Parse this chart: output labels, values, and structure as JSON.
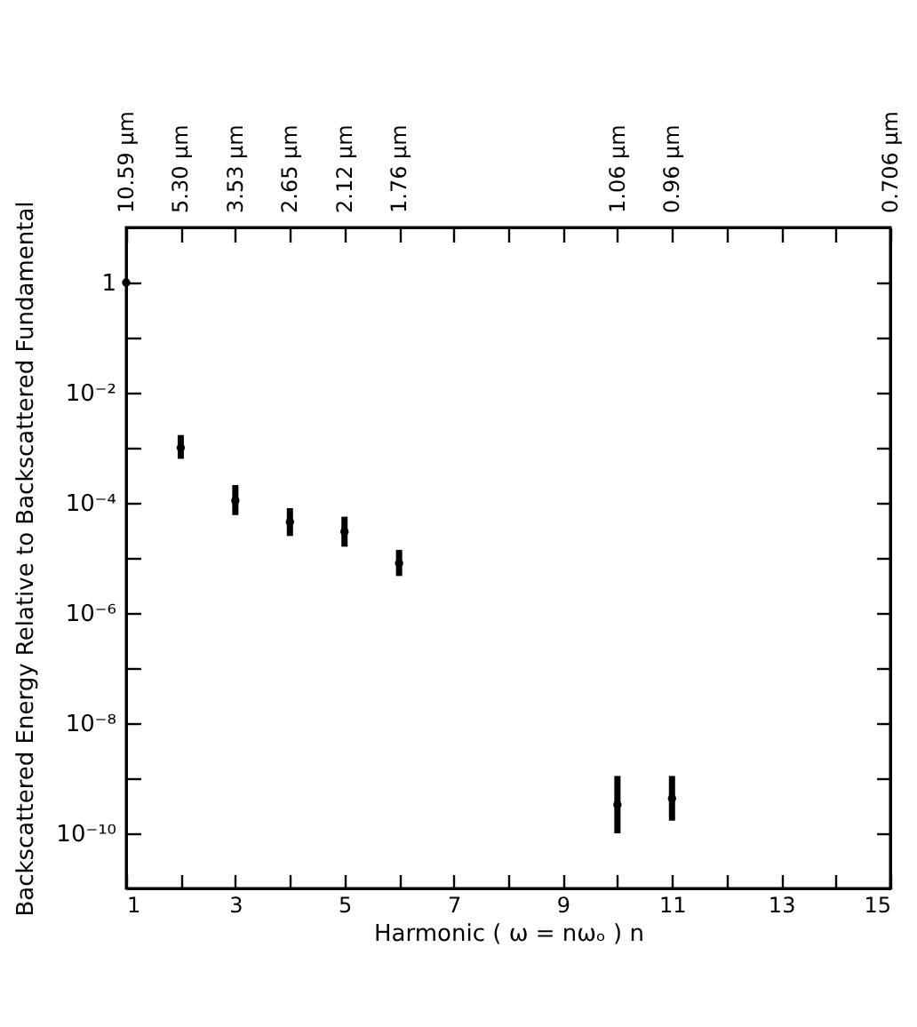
{
  "chart_data": {
    "type": "scatter",
    "xlabel": "Harmonic  ( ω = nωₒ ) n",
    "ylabel": "Backscattered  Energy  Relative  to  Backscattered  Fundamental",
    "x": [
      1,
      2,
      3,
      4,
      5,
      6,
      10,
      11
    ],
    "series": [
      {
        "color": "#000000",
        "values": [
          1,
          0.001,
          0.00011,
          4.5e-05,
          3e-05,
          8e-06,
          3.3e-10,
          4.3e-10
        ],
        "errors": [
          null,
          [
            0.00063,
            0.0017
          ],
          [
            6e-05,
            0.00021
          ],
          [
            2.5e-05,
            8e-05
          ],
          [
            1.6e-05,
            5.6e-05
          ],
          [
            4.7e-06,
            1.4e-05
          ],
          [
            1e-10,
            1.1e-09
          ],
          [
            1.7e-10,
            1.1e-09
          ]
        ]
      }
    ],
    "log": "y",
    "marker": "circle",
    "xlim": [
      1,
      15
    ],
    "xticks": [
      1,
      {
        "value": 2,
        "label": null
      },
      3,
      {
        "value": 4,
        "label": null
      },
      5,
      {
        "value": 6,
        "label": null
      },
      7,
      {
        "value": 8,
        "label": null
      },
      9,
      {
        "value": 10,
        "label": null
      },
      11,
      {
        "value": 12,
        "label": null
      },
      13,
      {
        "value": 14,
        "label": null
      },
      15
    ],
    "annotations": [
      {
        "text": "10.59 μm",
        "x": 1
      },
      {
        "text": "5.30 μm",
        "x": 2
      },
      {
        "text": "3.53 μm",
        "x": 3
      },
      {
        "text": "2.65 μm",
        "x": 4
      },
      {
        "text": "2.12 μm",
        "x": 5
      },
      {
        "text": "1.76 μm",
        "x": 6
      },
      {
        "text": "1.06 μm",
        "x": 10
      },
      {
        "text": "0.96 μm",
        "x": 11
      },
      "0.706 μm"
    ],
    "ylim": [
      1e-11,
      10
    ],
    "yticks": [
      1,
      {
        "value": 0.1,
        "label": null
      },
      {
        "value": 0.01,
        "label": "10⁻²"
      },
      {
        "value": 0.001,
        "label": null
      },
      {
        "value": 0.0001,
        "label": "10⁻⁴"
      },
      {
        "value": 1e-05,
        "label": null
      },
      {
        "value": 1e-06,
        "label": "10⁻⁶"
      },
      {
        "value": 1e-07,
        "label": null
      },
      {
        "value": 1e-08,
        "label": "10⁻⁸"
      },
      {
        "value": 1e-09,
        "label": null
      },
      {
        "value": 1e-10,
        "label": "10⁻¹⁰"
      }
    ]
  }
}
